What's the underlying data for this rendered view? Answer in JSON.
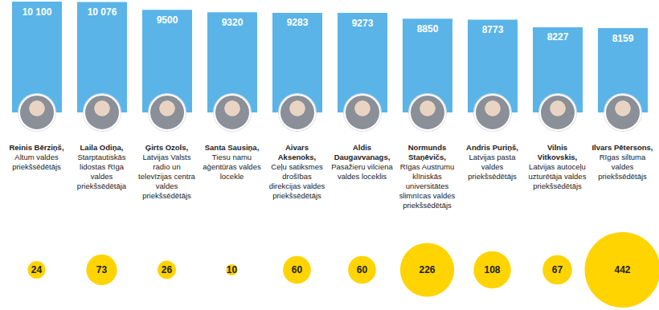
{
  "chart_data": {
    "type": "bar",
    "categories": [
      "Reinis Bērziņš,",
      "Laila Odiņa,",
      "Ģirts Ozols,",
      "Santa Sausiņa,",
      "Aivars Aksenoks,",
      "Aldis Daugavvanags,",
      "Normunds Staņēvičs,",
      "Andris Puriņš,",
      "Vilnis Vitkovskis,",
      "Ilvars Pētersons,"
    ],
    "descriptions": [
      "Altum valdes priekšsēdētājs",
      "Starptautiskās lidostas Rīga valdes priekšsēdētāja",
      "Latvijas Valsts radio un televīzijas centra valdes priekšsēdētājs",
      "Tiesu namu aģentūras valdes locekle",
      "Ceļu satiksmes drošības direkcijas valdes priekšsēdētājs",
      "Pasažieru vilciena valdes loceklis",
      "Rīgas Austrumu klīniskās universitātes slimnīcas valdes priekšsēdētājs",
      "Latvijas pasta valdes priekšsēdētājs",
      "Latvijas autoceļu uzturētāja valdes priekšsēdētājs",
      "Rīgas siltuma valdes priekšsēdētājs"
    ],
    "values": [
      10100,
      10076,
      9500,
      9320,
      9283,
      9273,
      8850,
      8773,
      8227,
      8159
    ],
    "value_labels": [
      "10 100",
      "10 076",
      "9500",
      "9320",
      "9283",
      "9273",
      "8850",
      "8773",
      "8227",
      "8159"
    ],
    "color": "#5ab4e8",
    "ylim": [
      2000,
      10100
    ],
    "yticks": [],
    "tick_labels": false,
    "data_labels": true,
    "sizes": [
      24,
      73,
      26,
      10,
      60,
      60,
      226,
      108,
      67,
      442
    ],
    "bubble_color": "#ffd400"
  }
}
